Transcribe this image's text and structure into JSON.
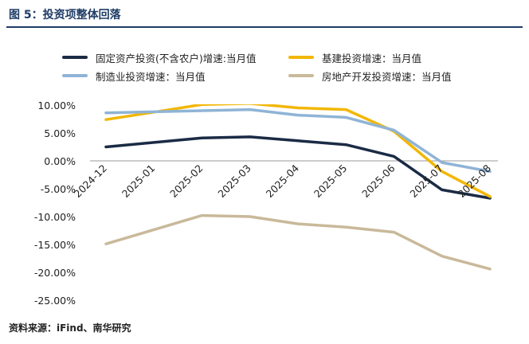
{
  "header": {
    "title": "图 5：投资项整体回落"
  },
  "footer": {
    "source": "资料来源：iFind、南华研究"
  },
  "chart_data": {
    "type": "line",
    "title": "",
    "xlabel": "",
    "ylabel": "",
    "x": [
      "2024-12",
      "2025-01",
      "2025-02",
      "2025-03",
      "2025-04",
      "2025-05",
      "2025-06",
      "2025-07",
      "2025-08"
    ],
    "y_ticks": [
      "10.00%",
      "5.00%",
      "0.00%",
      "-5.00%",
      "-10.00%",
      "-15.00%",
      "-20.00%",
      "-25.00%"
    ],
    "ylim": [
      -25,
      10
    ],
    "y_unit": "%",
    "grid": false,
    "legend_placement": "top",
    "series": [
      {
        "name": "固定资产投资(不含农户)增速:当月值",
        "color": "#1b2b45",
        "values": [
          2.5,
          null,
          4.1,
          4.3,
          3.6,
          2.9,
          0.8,
          -5.2,
          -6.7
        ]
      },
      {
        "name": "基建投资增速：当月值",
        "color": "#f2b705",
        "values": [
          7.4,
          null,
          10.1,
          10.3,
          9.5,
          9.2,
          5.3,
          -1.9,
          -6.4
        ]
      },
      {
        "name": "制造业投资增速：当月值",
        "color": "#8fb4d6",
        "values": [
          8.6,
          null,
          9.0,
          9.2,
          8.2,
          7.8,
          5.5,
          -0.3,
          -1.9
        ]
      },
      {
        "name": "房地产开发投资增速：当月值",
        "color": "#c9b99a",
        "values": [
          -14.9,
          null,
          -9.8,
          -10.0,
          -11.3,
          -11.9,
          -12.8,
          -17.1,
          -19.4
        ]
      }
    ]
  }
}
